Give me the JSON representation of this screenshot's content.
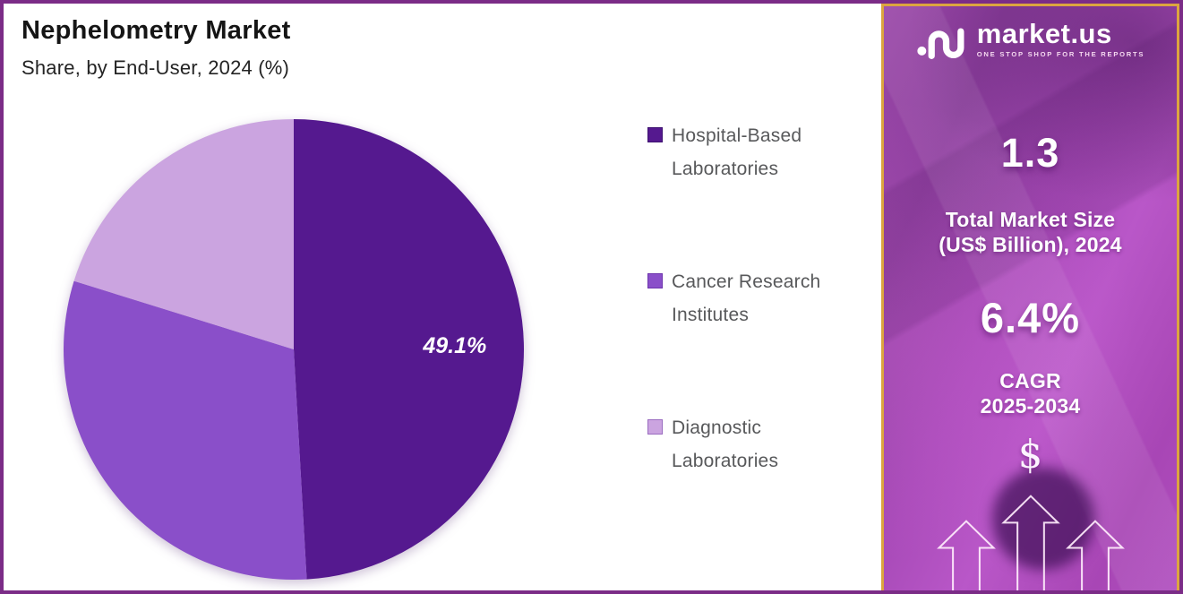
{
  "chart_data": {
    "type": "pie",
    "title": "Nephelometry Market",
    "subtitle": "Share, by End-User, 2024 (%)",
    "start_angle_deg": 0,
    "direction": "clockwise",
    "legend_position": "right",
    "label_radius_ratio": 0.7,
    "segments": [
      {
        "label": "Hospital-Based Laboratories",
        "value": 49.1,
        "display_label": "49.1%",
        "color": "#55198f",
        "marker_border": "#3d1170"
      },
      {
        "label": "Cancer Research Institutes",
        "value": 30.7,
        "display_label": "",
        "color": "#8a4fc9",
        "marker_border": "#6d35ad"
      },
      {
        "label": "Diagnostic Laboratories",
        "value": 20.2,
        "display_label": "",
        "color": "#cba4e0",
        "marker_border": "#9a6cc0"
      }
    ]
  },
  "sidebar": {
    "brand": {
      "name": "market.us",
      "tagline": "ONE STOP SHOP FOR THE REPORTS"
    },
    "market_size": {
      "value": "1.3",
      "label_line1": "Total Market Size",
      "label_line2": "(US$ Billion), 2024"
    },
    "cagr": {
      "value": "6.4%",
      "label_line1": "CAGR",
      "label_line2": "2025-2034"
    },
    "currency_symbol": "$",
    "colors": {
      "border": "#dca53f",
      "text": "#ffffff"
    }
  },
  "colors": {
    "frame_border": "#7b2c87",
    "title_text": "#151515",
    "legend_text": "#58595b",
    "pie_label_text": "#ffffff"
  }
}
